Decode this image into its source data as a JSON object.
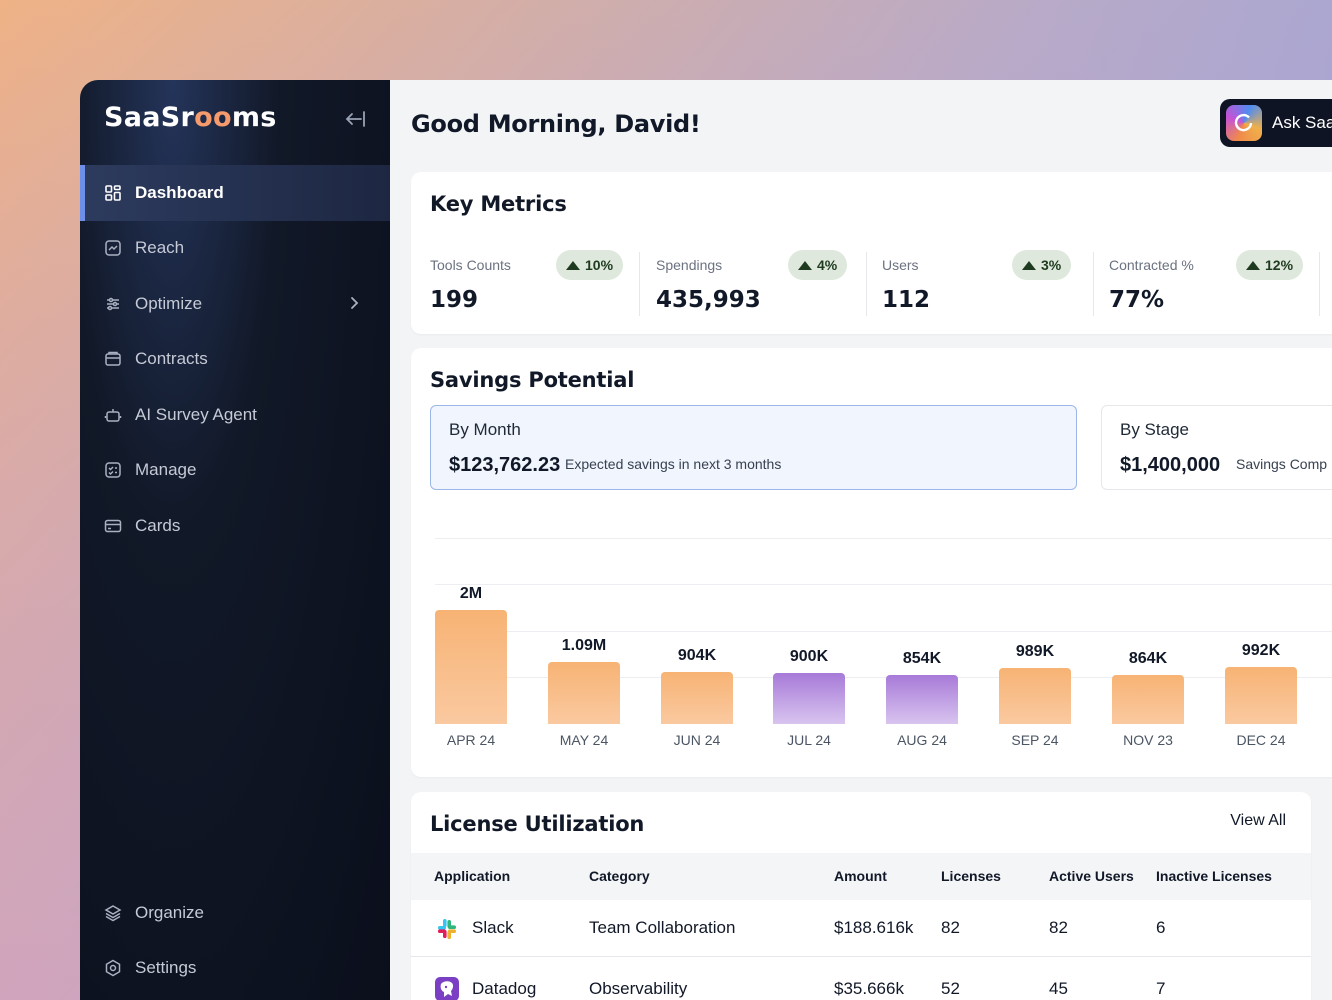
{
  "brand": {
    "pre": "SaaSr",
    "oo": "oo",
    "post": "ms"
  },
  "sidebar": {
    "items": [
      {
        "label": "Dashboard"
      },
      {
        "label": "Reach"
      },
      {
        "label": "Optimize"
      },
      {
        "label": "Contracts"
      },
      {
        "label": "AI Survey Agent"
      },
      {
        "label": "Manage"
      },
      {
        "label": "Cards"
      }
    ],
    "bottom": [
      {
        "label": "Organize"
      },
      {
        "label": "Settings"
      }
    ]
  },
  "header": {
    "greeting": "Good Morning, David!",
    "ask_label": "Ask Saa"
  },
  "key_metrics": {
    "title": "Key Metrics",
    "items": [
      {
        "label": "Tools Counts",
        "value": "199",
        "change": "10%"
      },
      {
        "label": "Spendings",
        "value": "435,993",
        "change": "4%"
      },
      {
        "label": "Users",
        "value": "112",
        "change": "3%"
      },
      {
        "label": "Contracted %",
        "value": "77%",
        "change": "12%"
      }
    ]
  },
  "savings": {
    "title": "Savings Potential",
    "by_month": {
      "title": "By Month",
      "value": "$123,762.23",
      "desc": "Expected savings in next 3 months"
    },
    "by_stage": {
      "title": "By Stage",
      "value": "$1,400,000",
      "desc": "Savings Comp"
    }
  },
  "chart_data": {
    "type": "bar",
    "categories": [
      "APR 24",
      "MAY 24",
      "JUN 24",
      "JUL 24",
      "AUG 24",
      "SEP 24",
      "NOV 23",
      "DEC 24"
    ],
    "values": [
      2000000,
      1090000,
      904000,
      900000,
      854000,
      989000,
      864000,
      992000
    ],
    "labels": [
      "2M",
      "1.09M",
      "904K",
      "900K",
      "854K",
      "989K",
      "864K",
      "992K"
    ],
    "colors": [
      "#f7b374",
      "#f7b374",
      "#f7b374",
      "#a77ad8",
      "#a77ad8",
      "#f7b374",
      "#f7b374",
      "#f7b374"
    ],
    "title": "",
    "xlabel": "",
    "ylabel": ""
  },
  "license": {
    "title": "License Utilization",
    "view_all": "View All",
    "columns": [
      "Application",
      "Category",
      "Amount",
      "Licenses",
      "Active Users",
      "Inactive Licenses"
    ],
    "rows": [
      {
        "app": "Slack",
        "category": "Team Collaboration",
        "amount": "$188.616k",
        "licenses": "82",
        "active": "82",
        "inactive": "6"
      },
      {
        "app": "Datadog",
        "category": "Observability",
        "amount": "$35.666k",
        "licenses": "52",
        "active": "45",
        "inactive": "7"
      }
    ]
  }
}
